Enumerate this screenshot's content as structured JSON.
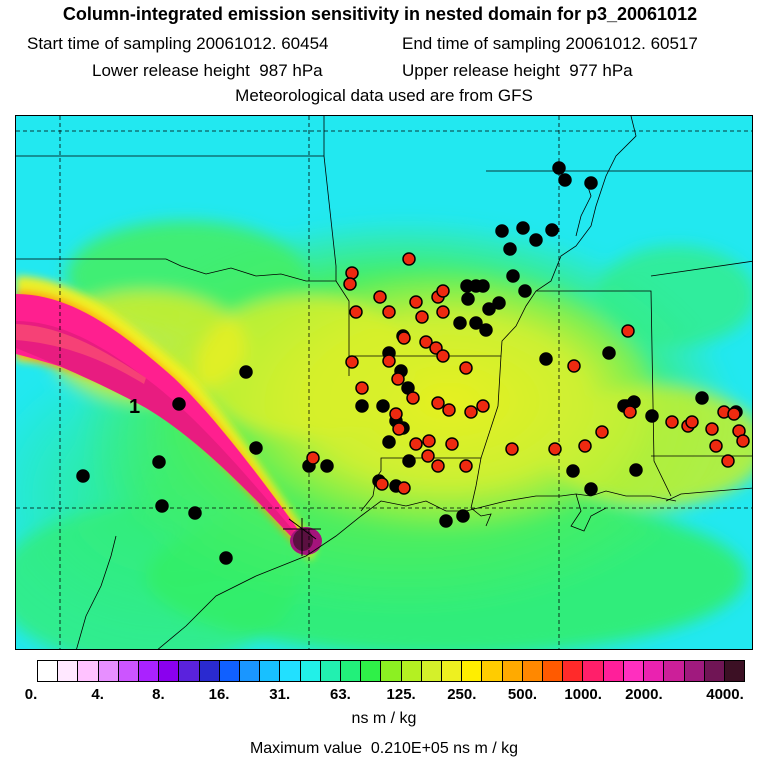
{
  "title": "Column-integrated emission sensitivity in nested domain for p3_20061012",
  "header": {
    "start_label": "Start time of sampling",
    "start_value": "20061012. 60454",
    "end_label": "End time of sampling",
    "end_value": "20061012. 60517",
    "lower_label": "Lower release height",
    "lower_value": "987 hPa",
    "upper_label": "Upper release height",
    "upper_value": "977 hPa",
    "met_note": "Meteorological data used are from GFS"
  },
  "map": {
    "marker_label": "1",
    "colors": {
      "background_cyan": "#22e8f0",
      "green": "#33ee66",
      "yellowgreen": "#ccf033",
      "yellow": "#f0f020",
      "plume_magenta": "#ff1f8f",
      "plume_core": "#e01c78",
      "source": "#5a1040",
      "red_marker": "#ee2a10"
    }
  },
  "colorbar": {
    "colors": [
      "#ffffff",
      "#ffe8ff",
      "#ffc2ff",
      "#e78fff",
      "#cc55ff",
      "#aa22ff",
      "#8a00ee",
      "#5a22dd",
      "#2a2ad0",
      "#1060ff",
      "#1a96ff",
      "#18c0ff",
      "#22e0ff",
      "#22f0e8",
      "#22f0b0",
      "#22f07a",
      "#2ff048",
      "#8cf022",
      "#b4f022",
      "#d4f02a",
      "#eef020",
      "#ffee00",
      "#ffcc00",
      "#ffaa00",
      "#ff8800",
      "#ff5a00",
      "#ff2a2a",
      "#ff1f6a",
      "#ff1f9a",
      "#ff2fbf",
      "#ea22b0",
      "#cc1f99",
      "#a01a7e",
      "#701555",
      "#3c1024"
    ],
    "ticks": [
      "0.",
      "4.",
      "8.",
      "16.",
      "31.",
      "63.",
      "125.",
      "250.",
      "500.",
      "1000.",
      "2000.",
      "4000."
    ],
    "units": "ns m / kg",
    "max_label": "Maximum value",
    "max_value": "0.210E+05 ns m / kg"
  }
}
